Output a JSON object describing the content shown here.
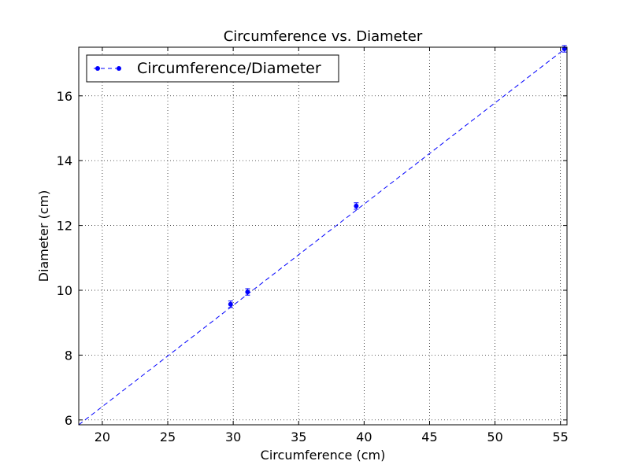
{
  "chart_data": {
    "type": "scatter",
    "title": "Circumference vs. Diameter",
    "xlabel": "Circumference (cm)",
    "ylabel": "Diameter (cm)",
    "xlim": [
      18.2,
      55.5
    ],
    "ylim": [
      5.85,
      17.5
    ],
    "xticks": [
      20,
      25,
      30,
      35,
      40,
      45,
      50,
      55
    ],
    "yticks": [
      6,
      8,
      10,
      12,
      14,
      16
    ],
    "grid": true,
    "legend_position": "top-left",
    "series": [
      {
        "name": "Circumference/Diameter",
        "color": "#0000ff",
        "marker": "circle",
        "x": [
          29.8,
          31.1,
          39.4,
          55.3
        ],
        "y": [
          9.57,
          9.95,
          12.6,
          17.45
        ],
        "y_error": [
          0.1,
          0.1,
          0.1,
          0.1
        ]
      }
    ],
    "fit_line": {
      "style": "dashed",
      "color": "#0000ff",
      "x": [
        18.2,
        55.5
      ],
      "y": [
        5.85,
        17.5
      ]
    }
  }
}
